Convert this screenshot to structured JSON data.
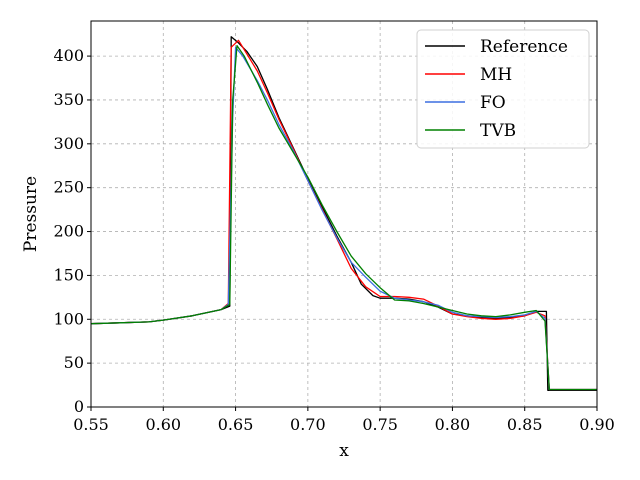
{
  "chart_data": {
    "type": "line",
    "title": "",
    "xlabel": "x",
    "ylabel": "Pressure",
    "xlim": [
      0.55,
      0.9
    ],
    "ylim": [
      0,
      440
    ],
    "xticks": [
      0.55,
      0.6,
      0.65,
      0.7,
      0.75,
      0.8,
      0.85,
      0.9
    ],
    "xtick_labels": [
      "0.55",
      "0.60",
      "0.65",
      "0.70",
      "0.75",
      "0.80",
      "0.85",
      "0.90"
    ],
    "yticks": [
      0,
      50,
      100,
      150,
      200,
      250,
      300,
      350,
      400
    ],
    "ytick_labels": [
      "0",
      "50",
      "100",
      "150",
      "200",
      "250",
      "300",
      "350",
      "400"
    ],
    "grid": true,
    "legend_position": "top-right",
    "series": [
      {
        "name": "Reference",
        "color": "#000000",
        "x": [
          0.55,
          0.57,
          0.59,
          0.6,
          0.62,
          0.64,
          0.646,
          0.647,
          0.652,
          0.658,
          0.665,
          0.672,
          0.68,
          0.69,
          0.7,
          0.71,
          0.72,
          0.73,
          0.737,
          0.745,
          0.75,
          0.76,
          0.77,
          0.78,
          0.79,
          0.8,
          0.81,
          0.82,
          0.83,
          0.84,
          0.85,
          0.858,
          0.865,
          0.866,
          0.9
        ],
        "y": [
          95,
          96,
          97,
          99,
          104,
          111,
          115,
          422,
          415,
          405,
          388,
          362,
          330,
          295,
          260,
          228,
          195,
          165,
          140,
          127,
          124,
          124,
          123,
          120,
          114,
          106,
          104,
          102,
          101,
          102,
          104,
          109,
          109,
          19,
          19
        ]
      },
      {
        "name": "MH",
        "color": "#ff0000",
        "x": [
          0.55,
          0.57,
          0.59,
          0.6,
          0.62,
          0.64,
          0.645,
          0.647,
          0.652,
          0.658,
          0.665,
          0.672,
          0.68,
          0.69,
          0.7,
          0.71,
          0.72,
          0.73,
          0.74,
          0.75,
          0.76,
          0.77,
          0.78,
          0.79,
          0.8,
          0.81,
          0.82,
          0.83,
          0.84,
          0.85,
          0.858,
          0.864,
          0.867,
          0.9
        ],
        "y": [
          95,
          96,
          97,
          99,
          104,
          111,
          118,
          410,
          418,
          402,
          383,
          358,
          328,
          294,
          258,
          225,
          192,
          158,
          137,
          126,
          126,
          125,
          123,
          115,
          106,
          103,
          101,
          100,
          101,
          104,
          108,
          104,
          20,
          20
        ]
      },
      {
        "name": "FO",
        "color": "#3b6fe0",
        "x": [
          0.55,
          0.57,
          0.59,
          0.6,
          0.62,
          0.64,
          0.645,
          0.648,
          0.65,
          0.655,
          0.665,
          0.672,
          0.68,
          0.69,
          0.7,
          0.71,
          0.72,
          0.73,
          0.74,
          0.75,
          0.76,
          0.77,
          0.78,
          0.79,
          0.8,
          0.81,
          0.82,
          0.83,
          0.84,
          0.85,
          0.858,
          0.864,
          0.867,
          0.9
        ],
        "y": [
          95,
          96,
          97,
          99,
          104,
          111,
          117,
          330,
          410,
          400,
          372,
          350,
          322,
          292,
          258,
          224,
          193,
          165,
          148,
          132,
          124,
          122,
          120,
          116,
          108,
          104,
          103,
          102,
          103,
          105,
          109,
          101,
          20,
          20
        ]
      },
      {
        "name": "TVB",
        "color": "#008000",
        "x": [
          0.55,
          0.57,
          0.59,
          0.6,
          0.62,
          0.64,
          0.646,
          0.648,
          0.651,
          0.656,
          0.665,
          0.672,
          0.68,
          0.69,
          0.7,
          0.71,
          0.72,
          0.73,
          0.74,
          0.75,
          0.76,
          0.77,
          0.78,
          0.79,
          0.8,
          0.81,
          0.82,
          0.83,
          0.84,
          0.85,
          0.858,
          0.864,
          0.867,
          0.9
        ],
        "y": [
          95,
          96,
          97,
          99,
          104,
          111,
          117,
          350,
          412,
          400,
          370,
          345,
          318,
          290,
          262,
          230,
          200,
          172,
          152,
          136,
          122,
          121,
          118,
          114,
          110,
          106,
          104,
          103,
          105,
          108,
          110,
          98,
          20,
          20
        ]
      }
    ]
  }
}
